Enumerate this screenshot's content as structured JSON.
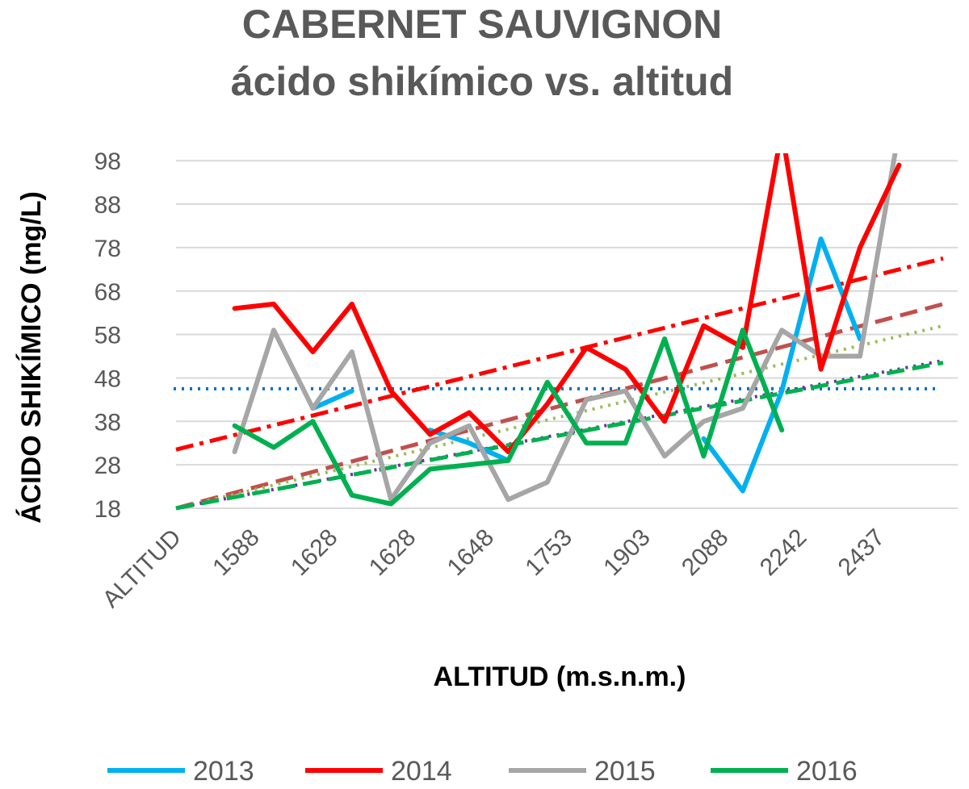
{
  "chart_data": {
    "type": "line",
    "title": "CABERNET SAUVIGNON",
    "subtitle": "ácido shikímico vs. altitud",
    "xlabel": "ALTITUD (m.s.n.m.)",
    "ylabel": "ÁCIDO SHIKÍMICO (mg/L)",
    "ylim": [
      18,
      100
    ],
    "yticks": [
      "98",
      "88",
      "78",
      "68",
      "58",
      "48",
      "38",
      "28",
      "18"
    ],
    "xtick_labels": [
      "ALTITUD",
      "1588",
      "1628",
      "1628",
      "1648",
      "1753",
      "1903",
      "2088",
      "2242",
      "2437"
    ],
    "grid": true,
    "legend_position": "bottom",
    "series": [
      {
        "name": "2013",
        "color": "#00B0F0",
        "values": [
          null,
          37,
          null,
          41,
          45,
          null,
          36,
          33,
          29,
          null,
          null,
          null,
          null,
          34,
          22,
          45,
          80,
          57,
          null,
          null,
          null
        ]
      },
      {
        "name": "2014",
        "color": "#FF0000",
        "values": [
          null,
          64,
          65,
          54,
          65,
          45,
          35,
          40,
          31,
          42,
          55,
          50,
          38,
          60,
          55,
          105,
          50,
          78,
          97,
          null,
          null
        ]
      },
      {
        "name": "2015",
        "color": "#A6A6A6",
        "values": [
          null,
          31,
          59,
          41,
          54,
          20,
          33,
          37,
          20,
          24,
          43,
          45,
          30,
          38,
          41,
          59,
          53,
          53,
          105,
          null,
          null
        ]
      },
      {
        "name": "2016",
        "color": "#00B050",
        "values": [
          null,
          37,
          32,
          38,
          21,
          19,
          27,
          28,
          29,
          47,
          33,
          33,
          57,
          30,
          59,
          36,
          null,
          null,
          null,
          null,
          null
        ]
      }
    ],
    "reference_lines": [
      {
        "color": "#0070C0",
        "style": "dotted",
        "y0": 45.5,
        "y1": 45.5
      },
      {
        "color": "#FF0000",
        "style": "dash-dot",
        "y0": 31.5,
        "y1": 75.5
      },
      {
        "color": "#C0504D",
        "style": "dashed",
        "y0": 18,
        "y1": 65
      },
      {
        "color": "#9BBB59",
        "style": "dotted",
        "y0": 18,
        "y1": 60
      },
      {
        "color": "#7030A0",
        "style": "dotted",
        "y0": 18,
        "y1": 52
      },
      {
        "color": "#00B050",
        "style": "dashed",
        "y0": 18,
        "y1": 51.5
      }
    ]
  }
}
